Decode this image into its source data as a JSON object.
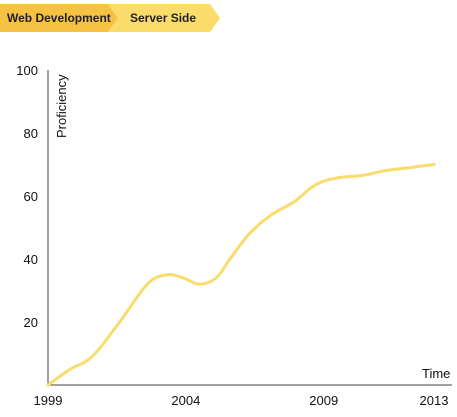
{
  "breadcrumb": {
    "items": [
      {
        "label": "Web Development",
        "color": "#f6c244"
      },
      {
        "label": "Server Side",
        "color": "#fbdc6a"
      }
    ]
  },
  "chart_data": {
    "type": "line",
    "xlabel": "Time",
    "ylabel": "Proficiency",
    "xlim": [
      1999,
      2013
    ],
    "ylim": [
      0,
      100
    ],
    "x_ticks": [
      1999,
      2004,
      2009,
      2013
    ],
    "y_ticks": [
      20,
      40,
      60,
      80,
      100
    ],
    "grid": false,
    "series": [
      {
        "color": "#f8dc6c",
        "x": [
          1999,
          1999.8,
          2000.6,
          2001.6,
          2002.6,
          2003.3,
          2003.9,
          2004.5,
          2005.1,
          2005.6,
          2006.3,
          2007.1,
          2007.9,
          2008.6,
          2009.1,
          2009.7,
          2010.4,
          2011.2,
          2012.1,
          2013
        ],
        "y": [
          0,
          5,
          9,
          20,
          32,
          35,
          34,
          32,
          34,
          40,
          48,
          54,
          58,
          63,
          65,
          66,
          66.5,
          68,
          69,
          70
        ]
      }
    ]
  }
}
